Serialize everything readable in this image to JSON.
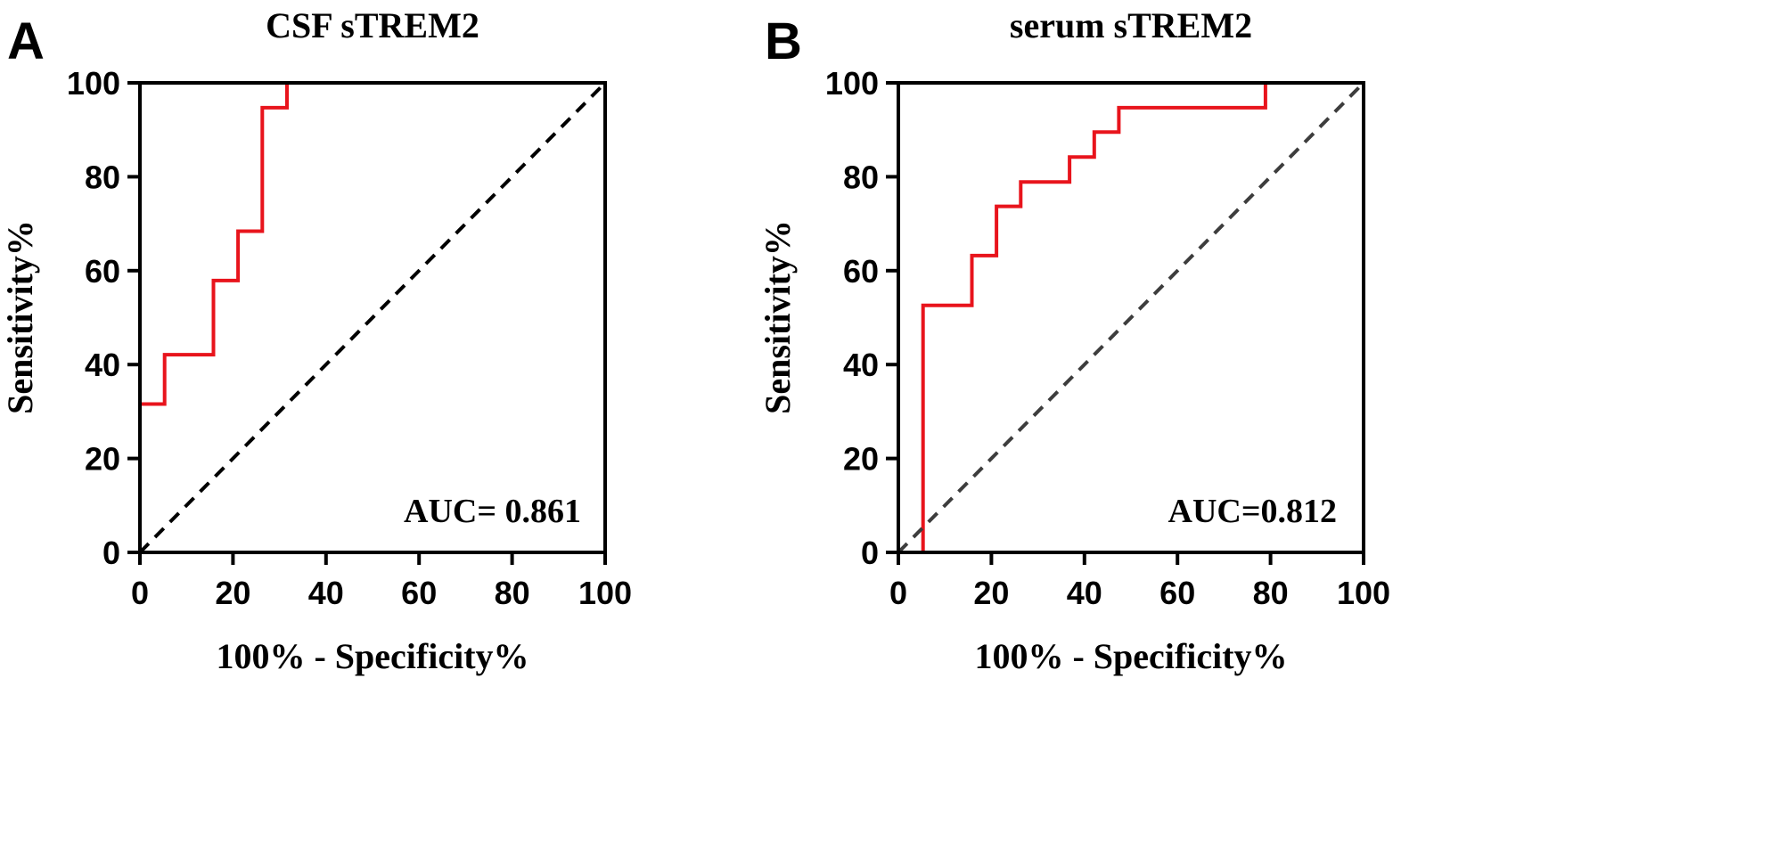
{
  "chart_data": [
    {
      "type": "line",
      "panel_label": "A",
      "title": "CSF sTREM2",
      "xlabel": "100% - Specificity%",
      "ylabel": "Sensitivity%",
      "xlim": [
        0,
        100
      ],
      "ylim": [
        0,
        100
      ],
      "xticks": [
        0,
        20,
        40,
        60,
        80,
        100
      ],
      "yticks": [
        0,
        20,
        40,
        60,
        80,
        100
      ],
      "xtick_labels": [
        "0",
        "20",
        "40",
        "60",
        "80",
        "100"
      ],
      "ytick_labels": [
        "0",
        "20",
        "40",
        "60",
        "80",
        "100"
      ],
      "annotation": "AUC= 0.861",
      "series": [
        {
          "name": "ROC",
          "color": "#e8141c",
          "style": "step",
          "x": [
            0,
            0,
            5.3,
            5.3,
            15.8,
            15.8,
            21.1,
            21.1,
            26.3,
            26.3,
            31.6,
            31.6,
            100
          ],
          "y": [
            0,
            31.6,
            31.6,
            42.1,
            42.1,
            57.9,
            57.9,
            68.4,
            68.4,
            94.7,
            94.7,
            100,
            100
          ]
        },
        {
          "name": "Reference",
          "color": "#000000",
          "style": "dashed",
          "x": [
            0,
            100
          ],
          "y": [
            0,
            100
          ]
        }
      ]
    },
    {
      "type": "line",
      "panel_label": "B",
      "title": "serum sTREM2",
      "xlabel": "100% - Specificity%",
      "ylabel": "Sensitivity%",
      "xlim": [
        0,
        100
      ],
      "ylim": [
        0,
        100
      ],
      "xticks": [
        0,
        20,
        40,
        60,
        80,
        100
      ],
      "yticks": [
        0,
        20,
        40,
        60,
        80,
        100
      ],
      "xtick_labels": [
        "0",
        "20",
        "40",
        "60",
        "80",
        "100"
      ],
      "ytick_labels": [
        "0",
        "20",
        "40",
        "60",
        "80",
        "100"
      ],
      "annotation": "AUC=0.812",
      "series": [
        {
          "name": "ROC",
          "color": "#e8141c",
          "style": "step",
          "x": [
            0,
            5.3,
            5.3,
            15.8,
            15.8,
            21.1,
            21.1,
            26.3,
            26.3,
            36.8,
            36.8,
            42.1,
            42.1,
            47.4,
            47.4,
            78.9,
            78.9,
            100
          ],
          "y": [
            0,
            0,
            52.6,
            52.6,
            63.2,
            63.2,
            73.7,
            73.7,
            78.9,
            78.9,
            84.2,
            84.2,
            89.5,
            89.5,
            94.7,
            94.7,
            100,
            100
          ]
        },
        {
          "name": "Reference",
          "color": "#3d3d3d",
          "style": "dashed",
          "x": [
            0,
            100
          ],
          "y": [
            0,
            100
          ]
        }
      ]
    }
  ]
}
